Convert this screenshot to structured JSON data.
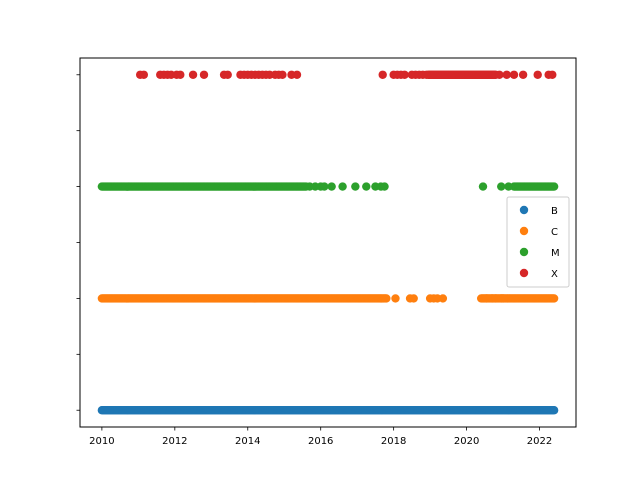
{
  "chart_data": {
    "type": "scatter",
    "title": "",
    "xlabel": "",
    "ylabel": "",
    "xlim": [
      2009.4,
      2023.0
    ],
    "ylim": [
      -0.15,
      3.15
    ],
    "x_ticks": [
      2010,
      2012,
      2014,
      2016,
      2018,
      2020,
      2022
    ],
    "x_tick_labels": [
      "2010",
      "2012",
      "2014",
      "2016",
      "2018",
      "2020",
      "2022"
    ],
    "y_ticks": [
      0,
      0.5,
      1,
      1.5,
      2,
      2.5,
      3
    ],
    "y_tick_labels": [
      "",
      "",
      "",
      "",
      "",
      "",
      ""
    ],
    "legend_position": "center-right",
    "series": [
      {
        "name": "B",
        "color": "#1f77b4",
        "y": 0,
        "dense_ranges": [
          [
            2010.0,
            2022.4
          ]
        ],
        "x": []
      },
      {
        "name": "C",
        "color": "#ff7f0e",
        "y": 1,
        "dense_ranges": [
          [
            2010.0,
            2017.8
          ],
          [
            2020.4,
            2022.4
          ]
        ],
        "x": [
          2018.05,
          2018.45,
          2018.55,
          2019.0,
          2019.1,
          2019.2,
          2019.35,
          2020.55,
          2020.7,
          2020.8,
          2020.95,
          2021.0
        ]
      },
      {
        "name": "M",
        "color": "#2ca02c",
        "y": 2,
        "dense_ranges": [
          [
            2010.0,
            2015.6
          ],
          [
            2021.3,
            2022.4
          ]
        ],
        "x": [
          2015.7,
          2015.85,
          2016.0,
          2016.1,
          2016.3,
          2016.6,
          2016.95,
          2017.25,
          2017.5,
          2017.65,
          2017.75,
          2020.45,
          2020.95,
          2021.15
        ]
      },
      {
        "name": "X",
        "color": "#d62728",
        "y": 3,
        "dense_ranges": [
          [
            2018.95,
            2020.8
          ]
        ],
        "x": [
          2011.05,
          2011.15,
          2011.6,
          2011.7,
          2011.8,
          2011.9,
          2012.05,
          2012.15,
          2012.5,
          2012.8,
          2013.35,
          2013.45,
          2013.8,
          2013.9,
          2014.0,
          2014.1,
          2014.2,
          2014.3,
          2014.4,
          2014.5,
          2014.6,
          2014.75,
          2014.85,
          2014.95,
          2015.2,
          2015.35,
          2017.7,
          2018.0,
          2018.1,
          2018.2,
          2018.3,
          2018.5,
          2018.6,
          2018.7,
          2018.8,
          2018.9,
          2020.9,
          2021.1,
          2021.3,
          2021.55,
          2021.95,
          2022.25,
          2022.35
        ]
      }
    ]
  }
}
